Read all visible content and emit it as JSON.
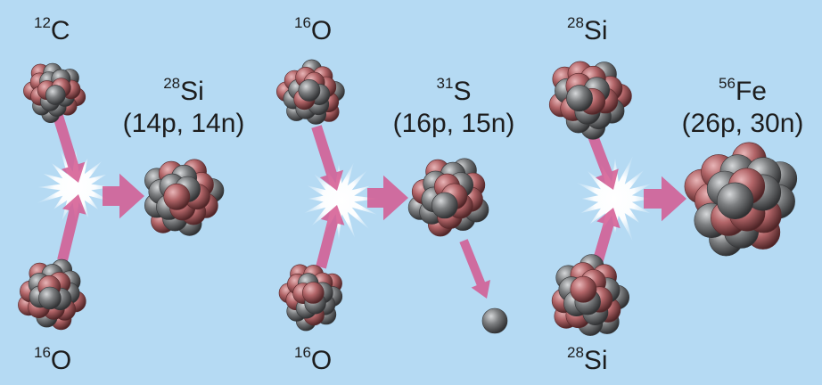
{
  "colors": {
    "background": "#b5daf3",
    "proton": "#a85a5e",
    "neutron": "#6f7173",
    "arrow": "#d4588f",
    "flash": "#ffffff"
  },
  "reactions": [
    {
      "reactant_a": {
        "mass": "12",
        "symbol": "C"
      },
      "reactant_b": {
        "mass": "16",
        "symbol": "O"
      },
      "product": {
        "mass": "28",
        "symbol": "Si",
        "composition": "(14p, 14n)"
      }
    },
    {
      "reactant_a": {
        "mass": "16",
        "symbol": "O"
      },
      "reactant_b": {
        "mass": "16",
        "symbol": "O"
      },
      "product": {
        "mass": "31",
        "symbol": "S",
        "composition": "(16p, 15n)"
      },
      "emitted_particle": "neutron"
    },
    {
      "reactant_a": {
        "mass": "28",
        "symbol": "Si"
      },
      "reactant_b": {
        "mass": "28",
        "symbol": "Si"
      },
      "product": {
        "mass": "56",
        "symbol": "Fe",
        "composition": "(26p, 30n)"
      }
    }
  ]
}
